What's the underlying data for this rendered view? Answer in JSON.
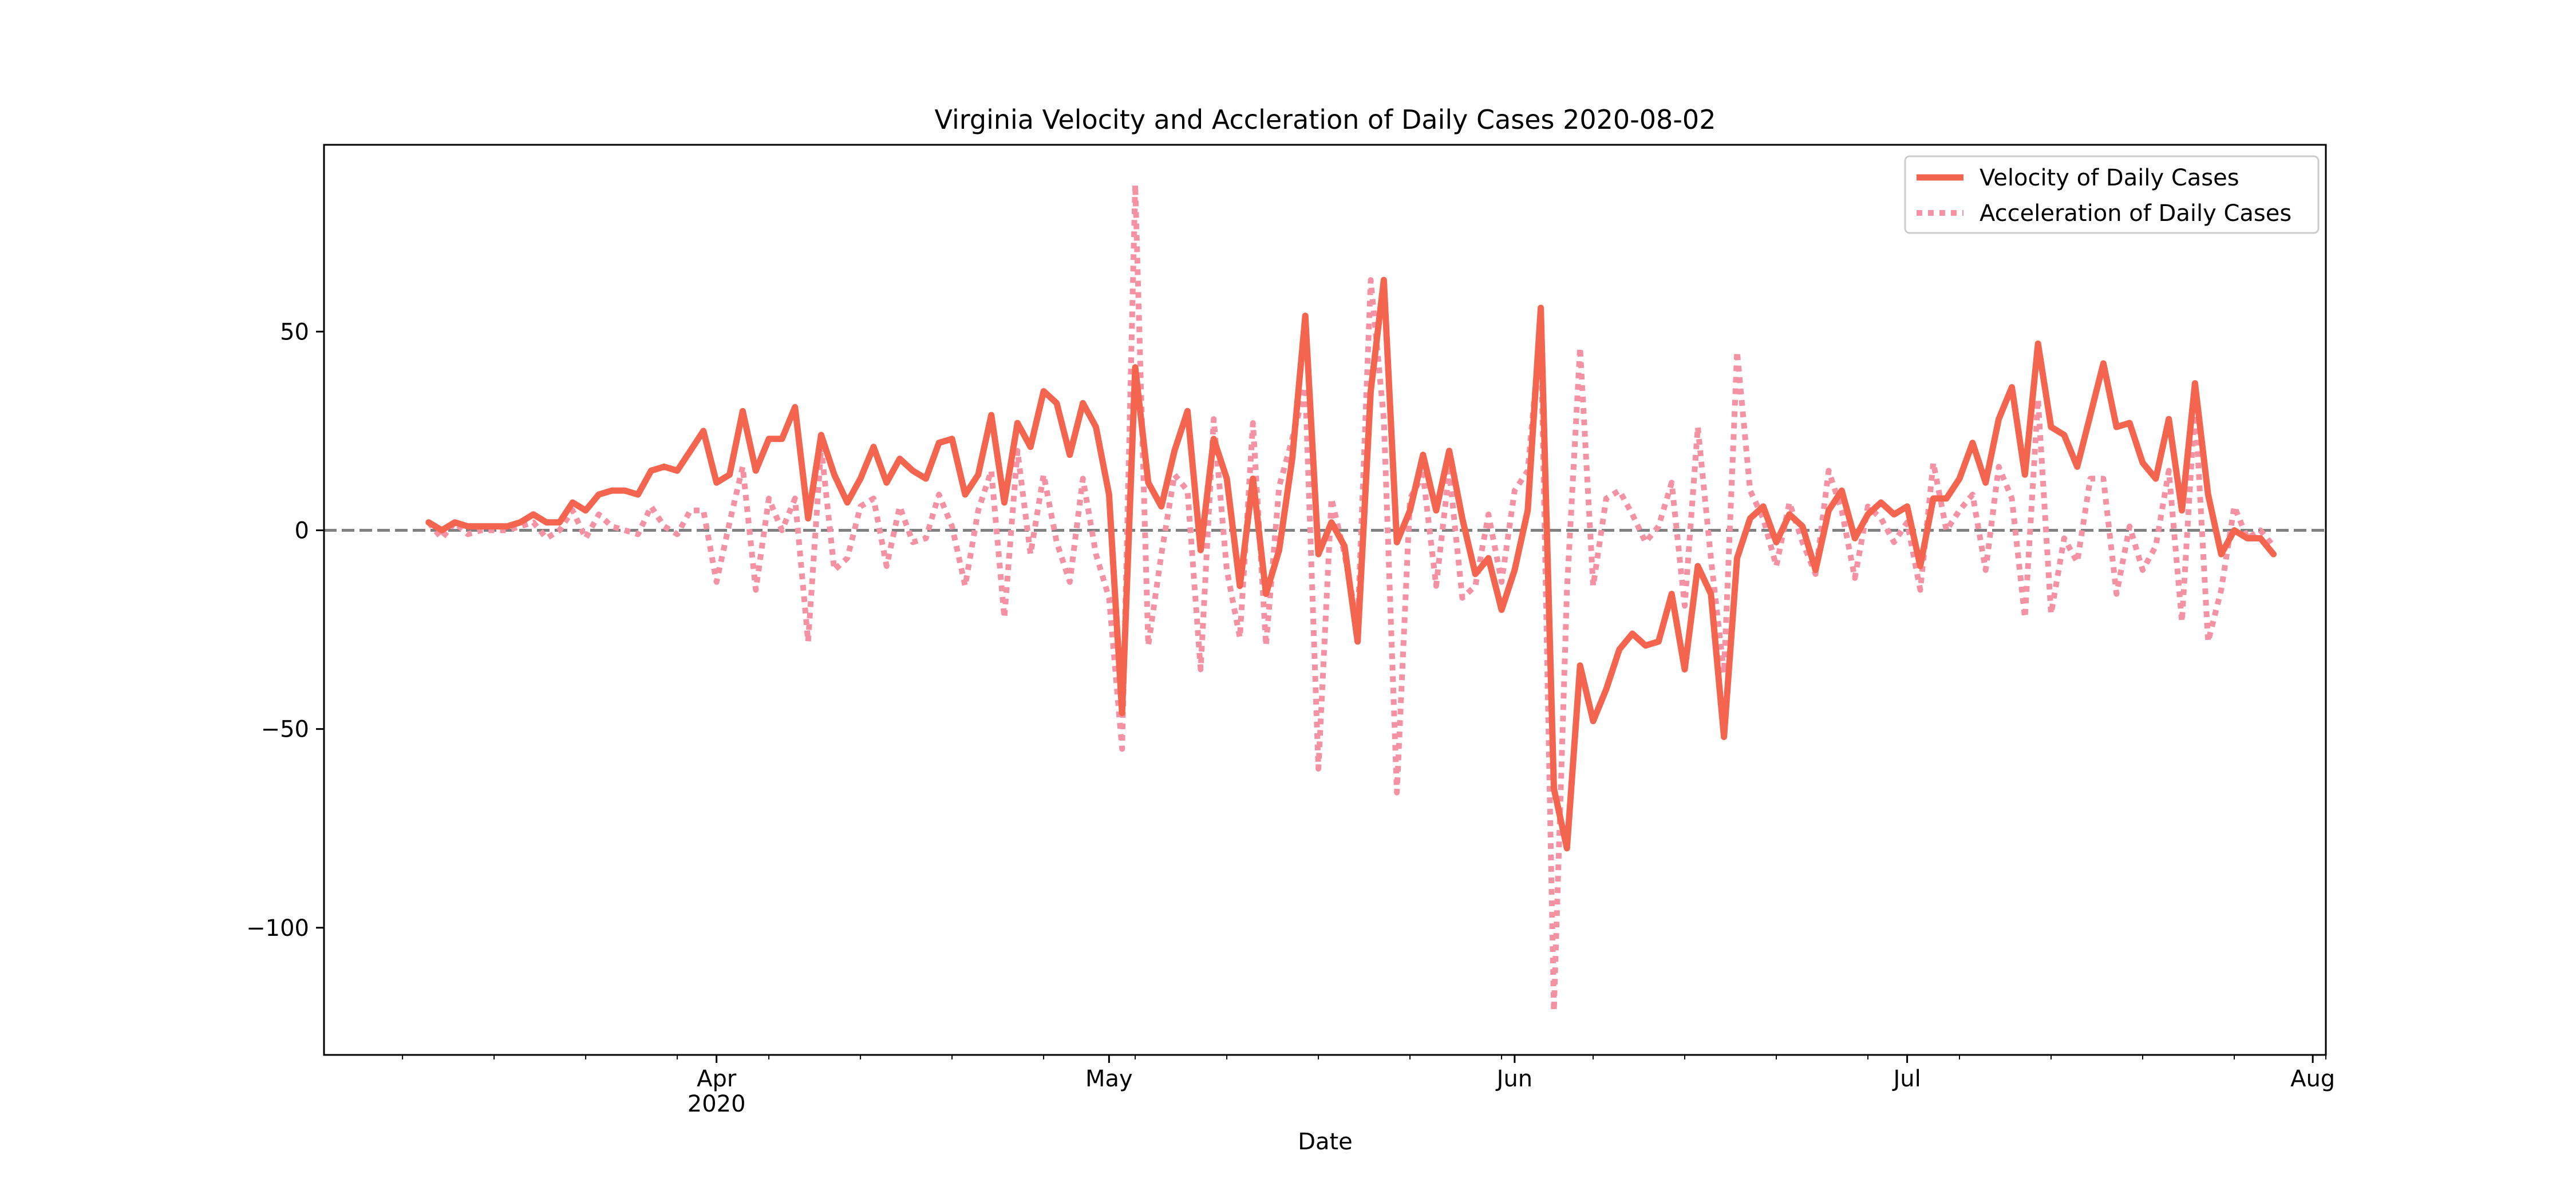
{
  "chart_data": {
    "type": "line",
    "title": "Virginia Velocity and Accleration of Daily Cases 2020-08-02",
    "xlabel": "Date",
    "ylabel": "",
    "x_start": "2020-03-10",
    "xlim": [
      "2020-03-02",
      "2020-08-02"
    ],
    "ylim": [
      -132,
      97
    ],
    "yticks": [
      50,
      0,
      -50,
      -100
    ],
    "ytick_labels": [
      "50",
      "0",
      "−50",
      "−100"
    ],
    "xticks": [
      {
        "date": "2020-04-01",
        "label": "Apr",
        "sublabel": "2020"
      },
      {
        "date": "2020-05-01",
        "label": "May",
        "sublabel": ""
      },
      {
        "date": "2020-06-01",
        "label": "Jun",
        "sublabel": ""
      },
      {
        "date": "2020-07-01",
        "label": "Jul",
        "sublabel": ""
      },
      {
        "date": "2020-08-01",
        "label": "Aug",
        "sublabel": ""
      }
    ],
    "zero_line": {
      "value": 0,
      "color": "#808080",
      "style": "dashed"
    },
    "legend_position": "upper right",
    "grid": false,
    "series": [
      {
        "name": "Velocity of Daily Cases",
        "color": "#f4654f",
        "style": "solid",
        "values": [
          2,
          0,
          2,
          1,
          1,
          1,
          1,
          2,
          4,
          2,
          2,
          7,
          5,
          9,
          10,
          10,
          9,
          15,
          16,
          15,
          20,
          25,
          12,
          14,
          30,
          15,
          23,
          23,
          31,
          3,
          24,
          14,
          7,
          13,
          21,
          12,
          18,
          15,
          13,
          22,
          23,
          9,
          14,
          29,
          7,
          27,
          21,
          35,
          32,
          19,
          32,
          26,
          9,
          -46,
          41,
          12,
          6,
          20,
          30,
          -5,
          23,
          13,
          -14,
          13,
          -16,
          -5,
          18,
          54,
          -6,
          2,
          -4,
          -28,
          35,
          63,
          -3,
          5,
          19,
          5,
          20,
          3,
          -11,
          -7,
          -20,
          -10,
          5,
          56,
          -65,
          -80,
          -34,
          -48,
          -40,
          -30,
          -26,
          -29,
          -28,
          -16,
          -35,
          -9,
          -16,
          -52,
          -7,
          3,
          6,
          -3,
          4,
          1,
          -10,
          5,
          10,
          -2,
          4,
          7,
          4,
          6,
          -9,
          8,
          8,
          13,
          22,
          12,
          28,
          36,
          14,
          47,
          26,
          24,
          16,
          29,
          42,
          26,
          27,
          17,
          13,
          28,
          5,
          37,
          9,
          -6,
          0,
          -2,
          -2,
          -6
        ]
      },
      {
        "name": "Acceleration of Daily Cases",
        "color": "#f492a4",
        "style": "dotted",
        "values": [
          2,
          -2,
          2,
          -1,
          0,
          0,
          0,
          1,
          2,
          -2,
          0,
          5,
          -2,
          4,
          1,
          0,
          -1,
          6,
          1,
          -1,
          5,
          5,
          -13,
          2,
          16,
          -15,
          8,
          0,
          8,
          -28,
          21,
          -10,
          -7,
          6,
          8,
          -9,
          6,
          -3,
          -2,
          9,
          1,
          -14,
          5,
          15,
          -22,
          20,
          -6,
          14,
          -3,
          -13,
          13,
          -6,
          -17,
          -55,
          87,
          -29,
          -6,
          14,
          10,
          -35,
          28,
          -10,
          -27,
          27,
          -29,
          11,
          23,
          36,
          -60,
          8,
          -6,
          -24,
          63,
          28,
          -66,
          8,
          14,
          -14,
          15,
          -17,
          -14,
          4,
          -13,
          10,
          15,
          51,
          -121,
          -15,
          46,
          -14,
          8,
          10,
          4,
          -3,
          1,
          12,
          -19,
          26,
          -7,
          -36,
          45,
          10,
          3,
          -9,
          7,
          -3,
          -11,
          15,
          5,
          -12,
          6,
          3,
          -3,
          2,
          -15,
          17,
          0,
          5,
          9,
          -10,
          16,
          8,
          -22,
          33,
          -21,
          -2,
          -8,
          13,
          13,
          -16,
          1,
          -10,
          -4,
          15,
          -23,
          32,
          -28,
          -15,
          6,
          -2,
          0,
          -4
        ]
      }
    ]
  }
}
